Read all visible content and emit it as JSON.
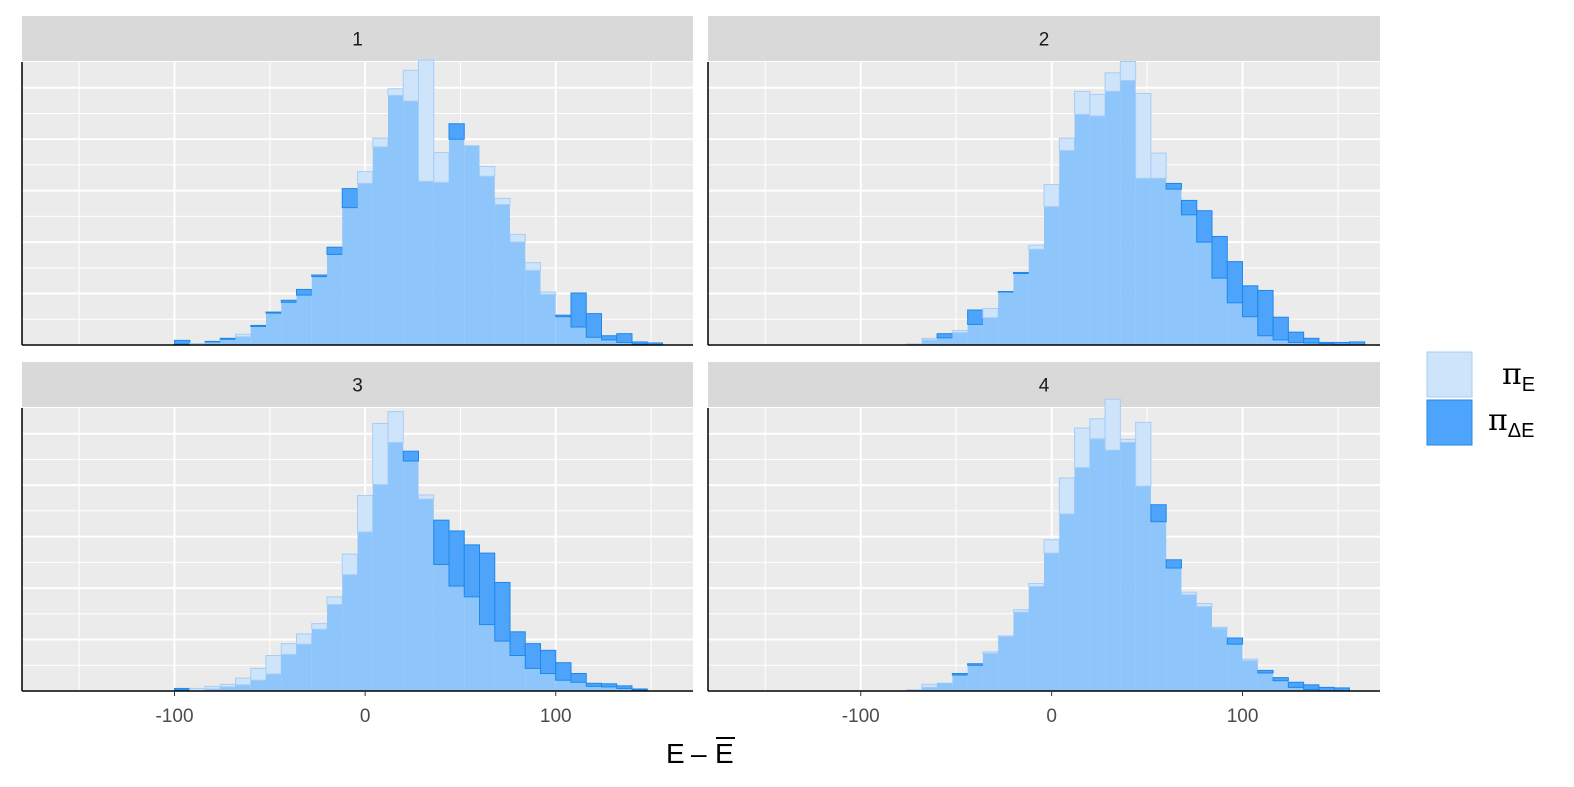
{
  "chart_data": {
    "type": "bar",
    "chart_kind": "faceted overlaid histogram",
    "xlabel_base": "E",
    "xlabel_minus": "–",
    "xlabel_bar": "E",
    "x_ticks": [
      -100,
      0,
      100
    ],
    "x_tick_labels": [
      "-100",
      "0",
      "100"
    ],
    "xlim": [
      -180,
      172
    ],
    "ylim": [
      0,
      55
    ],
    "bin_width": 8,
    "bin_start": -140,
    "grid": true,
    "y_axis_labels_shown": false,
    "legend_position": "right",
    "colors": {
      "pi_E_fill": "#cde4fb",
      "pi_E_stroke": "#a6cdf4",
      "pi_dE_fill": "#4ea4fa",
      "pi_dE_stroke": "#1e88ea",
      "overlap_fill": "#8ec5fb",
      "panel_bg": "#ebebeb",
      "strip_bg": "#d9d9d9",
      "grid": "#ffffff"
    },
    "legend": [
      {
        "key": "pi_E",
        "symbol": "π",
        "sub": "E"
      },
      {
        "key": "pi_dE",
        "symbol": "π",
        "sub": "ΔE"
      }
    ],
    "panels": [
      {
        "label": "1",
        "series": {
          "pi_E": [
            0,
            0,
            0,
            0,
            0,
            0.2,
            0.3,
            0.6,
            1.1,
            2.1,
            3.6,
            6.2,
            8.3,
            9.7,
            13.3,
            17.6,
            26.7,
            33.7,
            40.2,
            49.8,
            53.4,
            55.4,
            37.4,
            40.0,
            38.8,
            34.7,
            28.5,
            21.5,
            16.0,
            10.3,
            5.5,
            3.5,
            1.5,
            1.0,
            0.5,
            0.2,
            0,
            0,
            0,
            0
          ],
          "pi_dE": [
            0,
            0,
            0,
            0,
            0,
            0.9,
            0,
            0.7,
            1.3,
            1.6,
            3.8,
            6.4,
            8.7,
            10.8,
            13.6,
            19.0,
            30.4,
            31.4,
            38.5,
            48.5,
            47.4,
            31.8,
            31.6,
            43.0,
            38.8,
            32.8,
            27.3,
            20.0,
            14.5,
            9.8,
            5.8,
            10.1,
            6.1,
            1.8,
            2.2,
            0.6,
            0.4,
            0,
            0,
            0
          ]
        }
      },
      {
        "label": "2",
        "series": {
          "pi_E": [
            0,
            0,
            0,
            0,
            0,
            0,
            0,
            0,
            0.2,
            1.3,
            1.4,
            2.8,
            4.0,
            7.1,
            10.3,
            13.9,
            19.4,
            31.2,
            40.2,
            49.3,
            48.7,
            52.9,
            55.1,
            48.9,
            37.3,
            30.3,
            25.3,
            20.0,
            13.0,
            8.2,
            5.5,
            1.8,
            1.0,
            0.5,
            0.4,
            0.3,
            0,
            0,
            0,
            0
          ],
          "pi_dE": [
            0,
            0,
            0,
            0,
            0,
            0,
            0,
            0,
            0,
            1.0,
            2.2,
            2.4,
            6.8,
            5.3,
            10.4,
            14.1,
            18.6,
            26.9,
            37.8,
            44.8,
            44.5,
            49.3,
            51.4,
            32.4,
            32.4,
            31.4,
            28.1,
            26.1,
            21.1,
            16.2,
            11.5,
            10.6,
            5.4,
            2.5,
            1.3,
            0.5,
            0.5,
            0.6,
            0,
            0
          ]
        }
      },
      {
        "label": "3",
        "series": {
          "pi_E": [
            0,
            0,
            0,
            0,
            0,
            0.2,
            0.5,
            0.9,
            1.3,
            2.5,
            4.4,
            6.9,
            9.2,
            11.1,
            13.1,
            18.3,
            26.6,
            38.0,
            52.0,
            54.3,
            44.7,
            38.1,
            24.6,
            20.4,
            18.3,
            12.9,
            9.7,
            6.9,
            4.4,
            3.4,
            2.1,
            1.7,
            0.9,
            0.8,
            0.5,
            0.2,
            0,
            0,
            0,
            0
          ],
          "pi_dE": [
            0,
            0,
            0,
            0,
            0,
            0.5,
            0,
            0.4,
            0.8,
            1.2,
            2.1,
            3.3,
            7.1,
            9.1,
            12.0,
            16.8,
            22.6,
            30.9,
            40.1,
            48.3,
            46.6,
            37.3,
            33.2,
            31.1,
            28.4,
            26.8,
            21.1,
            11.5,
            9.2,
            7.9,
            5.5,
            3.4,
            1.5,
            1.4,
            1.0,
            0.4,
            0,
            0,
            0,
            0
          ]
        }
      },
      {
        "label": "4",
        "series": {
          "pi_E": [
            0,
            0,
            0,
            0,
            0,
            0,
            0,
            0,
            0.3,
            1.3,
            1.6,
            3.1,
            5.0,
            7.6,
            10.7,
            15.8,
            20.9,
            29.4,
            41.4,
            51.1,
            52.9,
            56.7,
            48.9,
            52.2,
            32.9,
            23.9,
            19.2,
            17.0,
            12.4,
            9.1,
            6.2,
            3.5,
            2.0,
            0.7,
            0.3,
            0,
            0,
            0,
            0,
            0
          ],
          "pi_dE": [
            0,
            0,
            0,
            0,
            0,
            0,
            0,
            0,
            0.3,
            0.7,
            1.6,
            3.4,
            5.3,
            7.3,
            10.6,
            15.3,
            20.3,
            26.8,
            34.4,
            43.4,
            49.0,
            46.8,
            48.3,
            39.8,
            36.2,
            25.5,
            18.7,
            16.4,
            12.2,
            10.3,
            5.9,
            4.0,
            2.6,
            1.7,
            1.2,
            0.7,
            0.6,
            0,
            0,
            0
          ]
        }
      }
    ]
  }
}
